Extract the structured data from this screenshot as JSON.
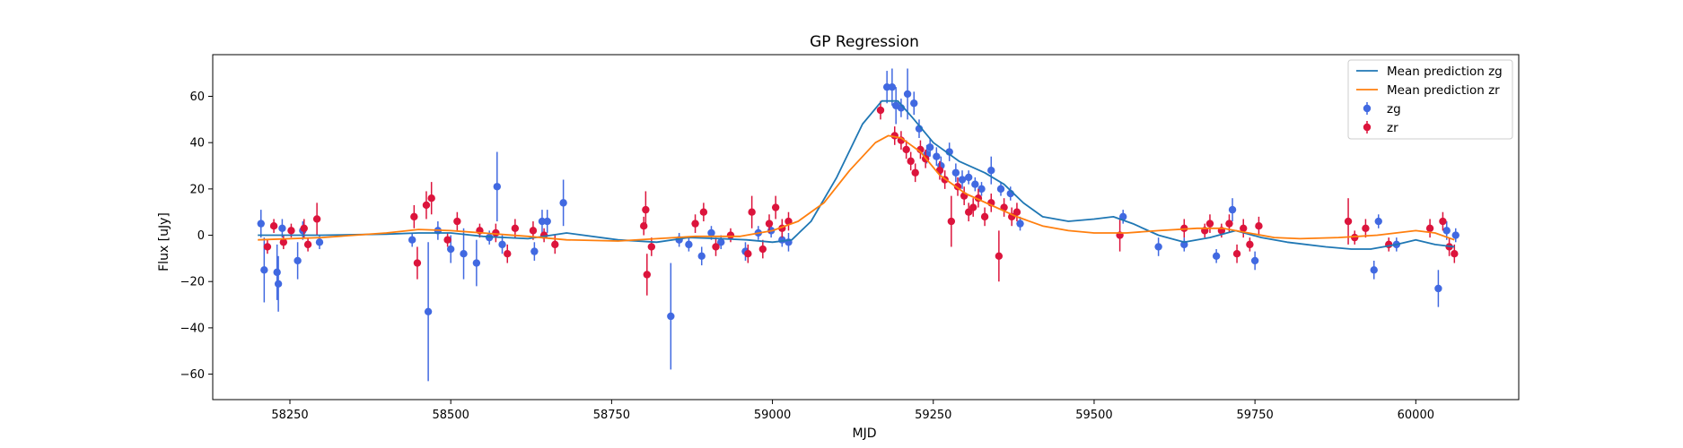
{
  "chart_data": {
    "type": "scatter",
    "title": "GP Regression",
    "xlabel": "MJD",
    "ylabel": "Flux [uJy]",
    "xlim": [
      58130,
      60160
    ],
    "ylim": [
      -71,
      78
    ],
    "x_ticks": [
      58250,
      58500,
      58750,
      59000,
      59250,
      59500,
      59750,
      60000
    ],
    "y_ticks": [
      -60,
      -40,
      -20,
      0,
      20,
      40,
      60
    ],
    "grid": false,
    "legend_position": "top-right",
    "series": [
      {
        "name": "Mean prediction zg",
        "kind": "line",
        "color": "#1f77b4",
        "points": [
          [
            58200,
            0
          ],
          [
            58300,
            0
          ],
          [
            58400,
            0.5
          ],
          [
            58450,
            1
          ],
          [
            58500,
            1
          ],
          [
            58550,
            -0.5
          ],
          [
            58620,
            -1.5
          ],
          [
            58680,
            1
          ],
          [
            58760,
            -2
          ],
          [
            58820,
            -3
          ],
          [
            58870,
            -1
          ],
          [
            58920,
            -1.5
          ],
          [
            58960,
            -2
          ],
          [
            59000,
            -3
          ],
          [
            59030,
            -2
          ],
          [
            59060,
            6
          ],
          [
            59100,
            25
          ],
          [
            59140,
            48
          ],
          [
            59170,
            58
          ],
          [
            59195,
            58
          ],
          [
            59220,
            50
          ],
          [
            59250,
            40
          ],
          [
            59290,
            32
          ],
          [
            59330,
            27
          ],
          [
            59360,
            22
          ],
          [
            59390,
            14
          ],
          [
            59420,
            8
          ],
          [
            59460,
            6
          ],
          [
            59500,
            7
          ],
          [
            59530,
            8
          ],
          [
            59560,
            5
          ],
          [
            59600,
            0
          ],
          [
            59640,
            -3
          ],
          [
            59680,
            -1
          ],
          [
            59720,
            2
          ],
          [
            59760,
            -1
          ],
          [
            59800,
            -3
          ],
          [
            59860,
            -5
          ],
          [
            59900,
            -6
          ],
          [
            59930,
            -6
          ],
          [
            59970,
            -4
          ],
          [
            60000,
            -2
          ],
          [
            60030,
            -4
          ],
          [
            60060,
            -5
          ]
        ]
      },
      {
        "name": "Mean prediction zr",
        "kind": "line",
        "color": "#ff7f0e",
        "points": [
          [
            58200,
            -2
          ],
          [
            58300,
            -1
          ],
          [
            58400,
            1
          ],
          [
            58450,
            2.5
          ],
          [
            58500,
            2
          ],
          [
            58550,
            1
          ],
          [
            58620,
            -0.5
          ],
          [
            58680,
            -2
          ],
          [
            58760,
            -2.5
          ],
          [
            58820,
            -1.5
          ],
          [
            58880,
            -0.5
          ],
          [
            58950,
            -0.5
          ],
          [
            59000,
            2
          ],
          [
            59040,
            6
          ],
          [
            59080,
            14
          ],
          [
            59120,
            28
          ],
          [
            59160,
            40
          ],
          [
            59180,
            43
          ],
          [
            59200,
            42
          ],
          [
            59230,
            36
          ],
          [
            59260,
            26
          ],
          [
            59300,
            18
          ],
          [
            59340,
            13
          ],
          [
            59380,
            8
          ],
          [
            59420,
            4
          ],
          [
            59460,
            2
          ],
          [
            59500,
            1
          ],
          [
            59550,
            1
          ],
          [
            59600,
            2
          ],
          [
            59660,
            3
          ],
          [
            59700,
            3
          ],
          [
            59740,
            1
          ],
          [
            59780,
            -1
          ],
          [
            59820,
            -1.5
          ],
          [
            59880,
            -1
          ],
          [
            59940,
            0
          ],
          [
            60000,
            2
          ],
          [
            60030,
            1
          ],
          [
            60060,
            -2
          ]
        ]
      },
      {
        "name": "zg",
        "kind": "errorbar",
        "color": "#4169e1",
        "points": [
          [
            58205,
            5,
            6
          ],
          [
            58210,
            -15,
            14
          ],
          [
            58230,
            -16,
            12
          ],
          [
            58232,
            -21,
            12
          ],
          [
            58238,
            3,
            4
          ],
          [
            58262,
            -11,
            8
          ],
          [
            58270,
            2,
            4
          ],
          [
            58296,
            -3,
            3
          ],
          [
            58440,
            -2,
            3
          ],
          [
            58465,
            -33,
            30
          ],
          [
            58480,
            2,
            4
          ],
          [
            58500,
            -6,
            6
          ],
          [
            58520,
            -8,
            11
          ],
          [
            58540,
            -12,
            10
          ],
          [
            58560,
            -1,
            3
          ],
          [
            58572,
            21,
            15
          ],
          [
            58580,
            -4,
            4
          ],
          [
            58630,
            -7,
            4
          ],
          [
            58642,
            6,
            5
          ],
          [
            58650,
            6,
            5
          ],
          [
            58675,
            14,
            10
          ],
          [
            58842,
            -35,
            23
          ],
          [
            58855,
            -2,
            3
          ],
          [
            58870,
            -4,
            3
          ],
          [
            58890,
            -9,
            4
          ],
          [
            58905,
            1,
            3
          ],
          [
            58920,
            -3,
            3
          ],
          [
            58958,
            -7,
            4
          ],
          [
            58978,
            1,
            3
          ],
          [
            58998,
            2,
            3
          ],
          [
            59015,
            -2,
            3
          ],
          [
            59025,
            -3,
            4
          ],
          [
            59178,
            64,
            7
          ],
          [
            59186,
            64,
            8
          ],
          [
            59192,
            56,
            8
          ],
          [
            59200,
            55,
            4
          ],
          [
            59210,
            61,
            11
          ],
          [
            59220,
            57,
            5
          ],
          [
            59228,
            46,
            4
          ],
          [
            59240,
            35,
            4
          ],
          [
            59245,
            38,
            4
          ],
          [
            59255,
            34,
            4
          ],
          [
            59262,
            30,
            4
          ],
          [
            59275,
            36,
            4
          ],
          [
            59285,
            27,
            4
          ],
          [
            59295,
            24,
            4
          ],
          [
            59305,
            25,
            3
          ],
          [
            59315,
            22,
            3
          ],
          [
            59325,
            20,
            3
          ],
          [
            59340,
            28,
            6
          ],
          [
            59355,
            20,
            3
          ],
          [
            59370,
            18,
            3
          ],
          [
            59385,
            5,
            3
          ],
          [
            59545,
            8,
            3
          ],
          [
            59600,
            -5,
            4
          ],
          [
            59640,
            -4,
            3
          ],
          [
            59690,
            -9,
            3
          ],
          [
            59715,
            11,
            5
          ],
          [
            59750,
            -11,
            4
          ],
          [
            59935,
            -15,
            4
          ],
          [
            59942,
            6,
            3
          ],
          [
            59970,
            -4,
            3
          ],
          [
            60035,
            -23,
            8
          ],
          [
            60048,
            2,
            4
          ],
          [
            60062,
            0,
            3
          ]
        ]
      },
      {
        "name": "zr",
        "kind": "errorbar",
        "color": "#dc143c",
        "points": [
          [
            58215,
            -5,
            3
          ],
          [
            58225,
            4,
            3
          ],
          [
            58240,
            -3,
            3
          ],
          [
            58252,
            2,
            3
          ],
          [
            58272,
            3,
            4
          ],
          [
            58278,
            -4,
            3
          ],
          [
            58292,
            7,
            7
          ],
          [
            58443,
            8,
            5
          ],
          [
            58448,
            -12,
            7
          ],
          [
            58462,
            13,
            6
          ],
          [
            58470,
            16,
            7
          ],
          [
            58495,
            -2,
            3
          ],
          [
            58510,
            6,
            4
          ],
          [
            58545,
            2,
            3
          ],
          [
            58570,
            1,
            4
          ],
          [
            58588,
            -8,
            4
          ],
          [
            58600,
            3,
            4
          ],
          [
            58628,
            2,
            4
          ],
          [
            58645,
            0,
            3
          ],
          [
            58662,
            -4,
            4
          ],
          [
            58800,
            4,
            4
          ],
          [
            58803,
            11,
            8
          ],
          [
            58805,
            -17,
            9
          ],
          [
            58812,
            -5,
            4
          ],
          [
            58880,
            5,
            4
          ],
          [
            58893,
            10,
            4
          ],
          [
            58912,
            -5,
            4
          ],
          [
            58935,
            0,
            3
          ],
          [
            58962,
            -8,
            4
          ],
          [
            58968,
            10,
            7
          ],
          [
            58985,
            -6,
            4
          ],
          [
            58995,
            5,
            4
          ],
          [
            59005,
            12,
            5
          ],
          [
            59015,
            3,
            4
          ],
          [
            59025,
            6,
            4
          ],
          [
            59168,
            54,
            4
          ],
          [
            59190,
            43,
            4
          ],
          [
            59200,
            41,
            4
          ],
          [
            59208,
            37,
            4
          ],
          [
            59215,
            32,
            4
          ],
          [
            59222,
            27,
            4
          ],
          [
            59230,
            37,
            4
          ],
          [
            59238,
            33,
            4
          ],
          [
            59260,
            28,
            4
          ],
          [
            59268,
            24,
            4
          ],
          [
            59278,
            6,
            11
          ],
          [
            59288,
            21,
            4
          ],
          [
            59298,
            17,
            4
          ],
          [
            59305,
            10,
            4
          ],
          [
            59312,
            12,
            4
          ],
          [
            59320,
            16,
            4
          ],
          [
            59330,
            8,
            4
          ],
          [
            59340,
            14,
            4
          ],
          [
            59352,
            -9,
            11
          ],
          [
            59360,
            12,
            4
          ],
          [
            59372,
            8,
            4
          ],
          [
            59380,
            10,
            4
          ],
          [
            59540,
            0,
            7
          ],
          [
            59640,
            3,
            4
          ],
          [
            59672,
            2,
            3
          ],
          [
            59680,
            5,
            4
          ],
          [
            59698,
            2,
            3
          ],
          [
            59710,
            5,
            4
          ],
          [
            59722,
            -8,
            4
          ],
          [
            59732,
            3,
            4
          ],
          [
            59742,
            -4,
            3
          ],
          [
            59756,
            4,
            4
          ],
          [
            59895,
            6,
            10
          ],
          [
            59905,
            -1,
            3
          ],
          [
            59922,
            3,
            4
          ],
          [
            59958,
            -4,
            3
          ],
          [
            60022,
            3,
            4
          ],
          [
            60042,
            6,
            4
          ],
          [
            60052,
            -5,
            4
          ],
          [
            60060,
            -8,
            4
          ]
        ]
      }
    ]
  }
}
